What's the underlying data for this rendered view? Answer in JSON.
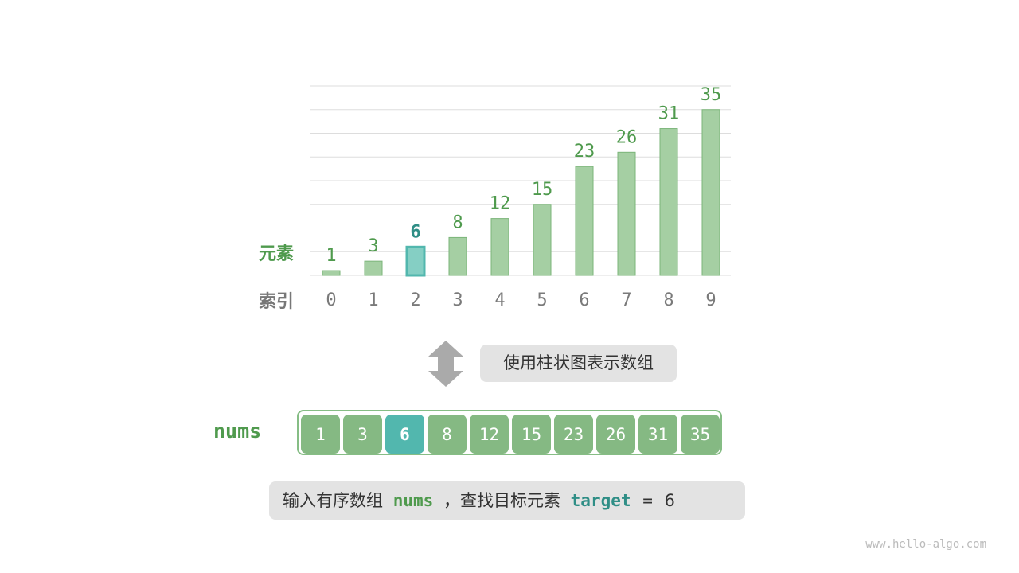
{
  "chart_data": {
    "type": "bar",
    "categories": [
      "0",
      "1",
      "2",
      "3",
      "4",
      "5",
      "6",
      "7",
      "8",
      "9"
    ],
    "values": [
      1,
      3,
      6,
      8,
      12,
      15,
      23,
      26,
      31,
      35
    ],
    "highlight_index": 2,
    "ylim": [
      0,
      40
    ],
    "grid": true,
    "xlabel": "索引",
    "ylabel": "元素"
  },
  "caption": "使用柱状图表示数组",
  "array": {
    "name": "nums",
    "values": [
      "1",
      "3",
      "6",
      "8",
      "12",
      "15",
      "23",
      "26",
      "31",
      "35"
    ],
    "highlight_index": 2
  },
  "statement": {
    "prefix": "输入有序数组",
    "nums": "nums",
    "middle": "，查找目标元素",
    "target": "target",
    "eq": "=",
    "value": "6"
  },
  "watermark": "www.hello-algo.com",
  "colors": {
    "bar": "#a5cfa3",
    "bar_border": "#7bb579",
    "highlight": "#52b7ae",
    "label_green": "#4f9a4d",
    "target_teal": "#2f8e86",
    "index_gray": "#7a7a7a"
  }
}
